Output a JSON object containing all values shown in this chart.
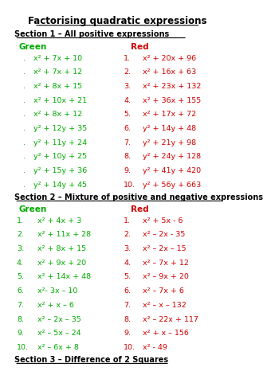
{
  "title": "Factorising quadratic expressions",
  "section1_header": "Section 1 – All positive expressions",
  "section2_header": "Section 2 – Mixture of positive and negative expressions",
  "section3_header": "Section 3 – Difference of 2 Squares",
  "green_label": "Green",
  "red_label": "Red",
  "green_color": "#00aa00",
  "red_color": "#cc0000",
  "black_color": "#000000",
  "bg_color": "#ffffff",
  "section1_green": [
    "x² + 7x + 10",
    "x² + 7x + 12",
    "x² + 8x + 15",
    "x² + 10x + 21",
    "x² + 8x + 12",
    "y² + 12y + 35",
    "y² + 11y + 24",
    "y² + 10y + 25",
    "y² + 15y + 36",
    "y² + 14y + 45"
  ],
  "section1_red": [
    "x² + 20x + 96",
    "x² + 16x + 63",
    "x² + 23x + 132",
    "x² + 36x + 155",
    "x² + 17x + 72",
    "y² + 14y + 48",
    "y² + 21y + 98",
    "y² + 24y + 128",
    "y² + 41y + 420",
    "y² + 56y + 663"
  ],
  "section2_green": [
    "x² + 4x + 3",
    "x² + 11x + 28",
    "x² + 8x + 15",
    "x² + 9x + 20",
    "x² + 14x + 48",
    "x²- 3x – 10",
    "x² + x – 6",
    "x² – 2x – 35",
    "x² – 5x – 24",
    "x² – 6x + 8"
  ],
  "section2_red": [
    "x² + 5x - 6",
    "x² – 2x - 35",
    "x² – 2x – 15",
    "x² – 7x + 12",
    "x² – 9x + 20",
    "x² – 7x + 6",
    "x² – x – 132",
    "x² – 22x + 117",
    "x² + x – 156",
    "x² - 49"
  ]
}
